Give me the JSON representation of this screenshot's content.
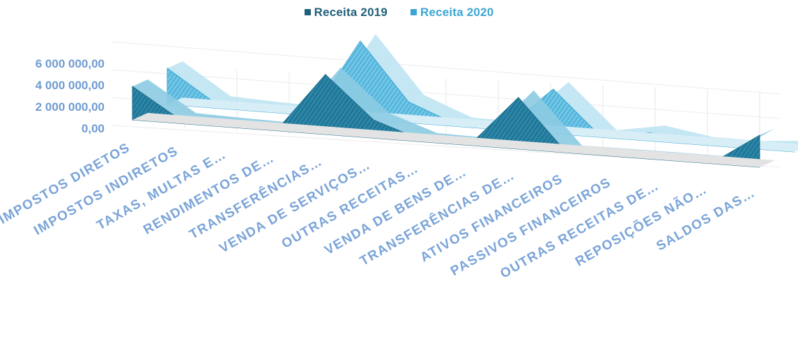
{
  "chart_data": {
    "type": "area",
    "view": "3d",
    "categories": [
      "IMPOSTOS DIRETOS",
      "IMPOSTOS INDIRETOS",
      "TAXAS, MULTAS E…",
      "RENDIMENTOS DE…",
      "TRANSFERÊNCIAS…",
      "VENDA DE SERVIÇOS…",
      "OUTRAS RECEITAS…",
      "VENDA DE BENS DE…",
      "TRANSFERÊNCIAS DE…",
      "ATIVOS FINANCEIROS",
      "PASSIVOS FINANCEIROS",
      "OUTRAS RECEITAS DE…",
      "REPOSIÇÕES NÃO…",
      "SALDOS DAS…"
    ],
    "series": [
      {
        "name": "Receita 2019",
        "color": "#1f6e8c",
        "values": [
          2400000,
          250000,
          150000,
          80000,
          4300000,
          1300000,
          120000,
          60000,
          3700000,
          10000,
          30000,
          30000,
          20000,
          2300000
        ]
      },
      {
        "name": "Receita 2020",
        "color": "#43b4da",
        "values": [
          2600000,
          350000,
          200000,
          100000,
          5600000,
          1500000,
          130000,
          80000,
          3200000,
          15000,
          600000,
          40000,
          25000,
          300000
        ]
      }
    ],
    "y_ticks": [
      "0,00",
      "2 000 000,00",
      "4 000 000,00",
      "6 000 000,00"
    ],
    "ylim": [
      0,
      6000000
    ],
    "grid": true,
    "legend_position": "top"
  }
}
